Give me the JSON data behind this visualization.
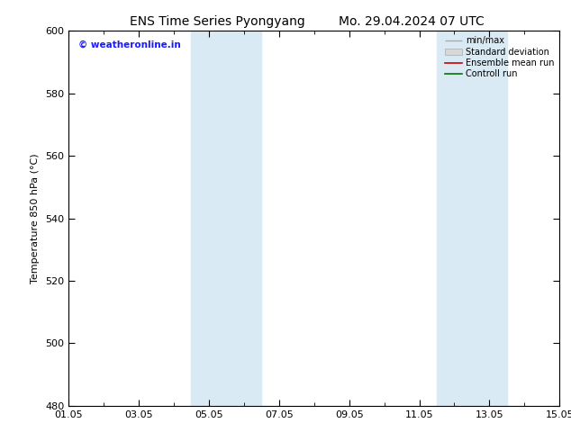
{
  "title_left": "ENS Time Series Pyongyang",
  "title_right": "Mo. 29.04.2024 07 UTC",
  "ylabel": "Temperature 850 hPa (°C)",
  "ylim": [
    480,
    600
  ],
  "yticks": [
    480,
    500,
    520,
    540,
    560,
    580,
    600
  ],
  "xtick_labels": [
    "01.05",
    "03.05",
    "05.05",
    "07.05",
    "09.05",
    "11.05",
    "13.05",
    "15.05"
  ],
  "xtick_positions": [
    0,
    2,
    4,
    6,
    8,
    10,
    12,
    14
  ],
  "xlim": [
    0,
    14
  ],
  "shade_bands": [
    {
      "x_start": 3.5,
      "x_end": 5.5
    },
    {
      "x_start": 10.5,
      "x_end": 12.5
    }
  ],
  "shade_color": "#daeaf5",
  "watermark_text": "© weatheronline.in",
  "watermark_color": "#1a1aff",
  "legend_labels": [
    "min/max",
    "Standard deviation",
    "Ensemble mean run",
    "Controll run"
  ],
  "legend_colors_line": [
    "#aaaaaa",
    "#cccccc",
    "#cc0000",
    "#007700"
  ],
  "background_color": "#ffffff",
  "title_fontsize": 10,
  "axis_label_fontsize": 8,
  "tick_fontsize": 8,
  "legend_fontsize": 7
}
